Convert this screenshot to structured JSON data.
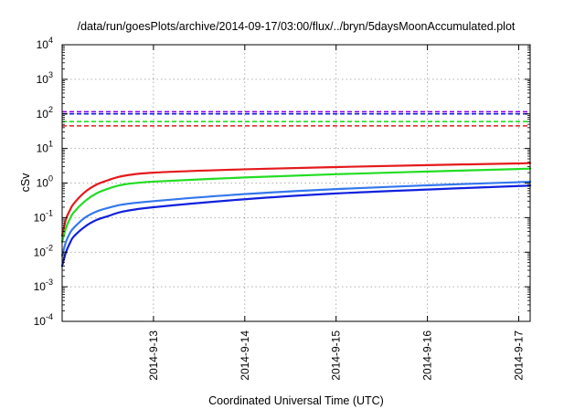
{
  "chart_data": {
    "type": "line",
    "title": "/data/run/goesPlots/archive/2014-09-17/03:00/flux/../bryn/5daysMoonAccumulated.plot",
    "xlabel": "Coordinated Universal Time (UTC)",
    "ylabel": "cSv",
    "y_scale": "log",
    "ylim": [
      0.0001,
      10000
    ],
    "y_ticks": [
      {
        "value": 0.0001,
        "exp": "-4"
      },
      {
        "value": 0.001,
        "exp": "-3"
      },
      {
        "value": 0.01,
        "exp": "-2"
      },
      {
        "value": 0.1,
        "exp": "-1"
      },
      {
        "value": 1,
        "exp": "0"
      },
      {
        "value": 10,
        "exp": "1"
      },
      {
        "value": 100,
        "exp": "2"
      },
      {
        "value": 1000,
        "exp": "3"
      },
      {
        "value": 10000,
        "exp": "4"
      }
    ],
    "y_tick_base": "10",
    "xlim": [
      "2014-09-12 00:00",
      "2014-09-17 03:00"
    ],
    "x_ticks": [
      "2014-9-13",
      "2014-9-14",
      "2014-9-15",
      "2014-9-16",
      "2014-9-17"
    ],
    "grid": true,
    "x": [
      "2014-09-12 00:00",
      "2014-09-12 01:00",
      "2014-09-12 02:00",
      "2014-09-12 03:00",
      "2014-09-12 06:00",
      "2014-09-12 09:00",
      "2014-09-12 12:00",
      "2014-09-12 16:00",
      "2014-09-13 00:00",
      "2014-09-14 00:00",
      "2014-09-15 00:00",
      "2014-09-16 00:00",
      "2014-09-17 00:00",
      "2014-09-17 03:00"
    ],
    "series": [
      {
        "color": "#e41a1c",
        "width": 2.2,
        "values": [
          0.03,
          0.09,
          0.16,
          0.25,
          0.55,
          0.9,
          1.2,
          1.6,
          2.0,
          2.5,
          2.9,
          3.3,
          3.7,
          3.8
        ]
      },
      {
        "color": "#22dd22",
        "width": 2.2,
        "values": [
          0.02,
          0.05,
          0.09,
          0.14,
          0.3,
          0.5,
          0.68,
          0.9,
          1.1,
          1.45,
          1.8,
          2.15,
          2.55,
          2.65
        ]
      },
      {
        "color": "#3377ee",
        "width": 2.2,
        "values": [
          0.008,
          0.02,
          0.035,
          0.05,
          0.1,
          0.15,
          0.19,
          0.24,
          0.3,
          0.48,
          0.67,
          0.86,
          1.06,
          1.1
        ]
      },
      {
        "color": "#1020dd",
        "width": 2.2,
        "values": [
          0.004,
          0.01,
          0.018,
          0.028,
          0.055,
          0.085,
          0.11,
          0.15,
          0.2,
          0.34,
          0.5,
          0.65,
          0.82,
          0.85
        ]
      }
    ],
    "thresholds": [
      {
        "color": "#8800ee",
        "value": 115
      },
      {
        "color": "#1020dd",
        "value": 100
      },
      {
        "color": "#22dd22",
        "value": 60
      },
      {
        "color": "#e41a1c",
        "value": 45
      }
    ]
  }
}
